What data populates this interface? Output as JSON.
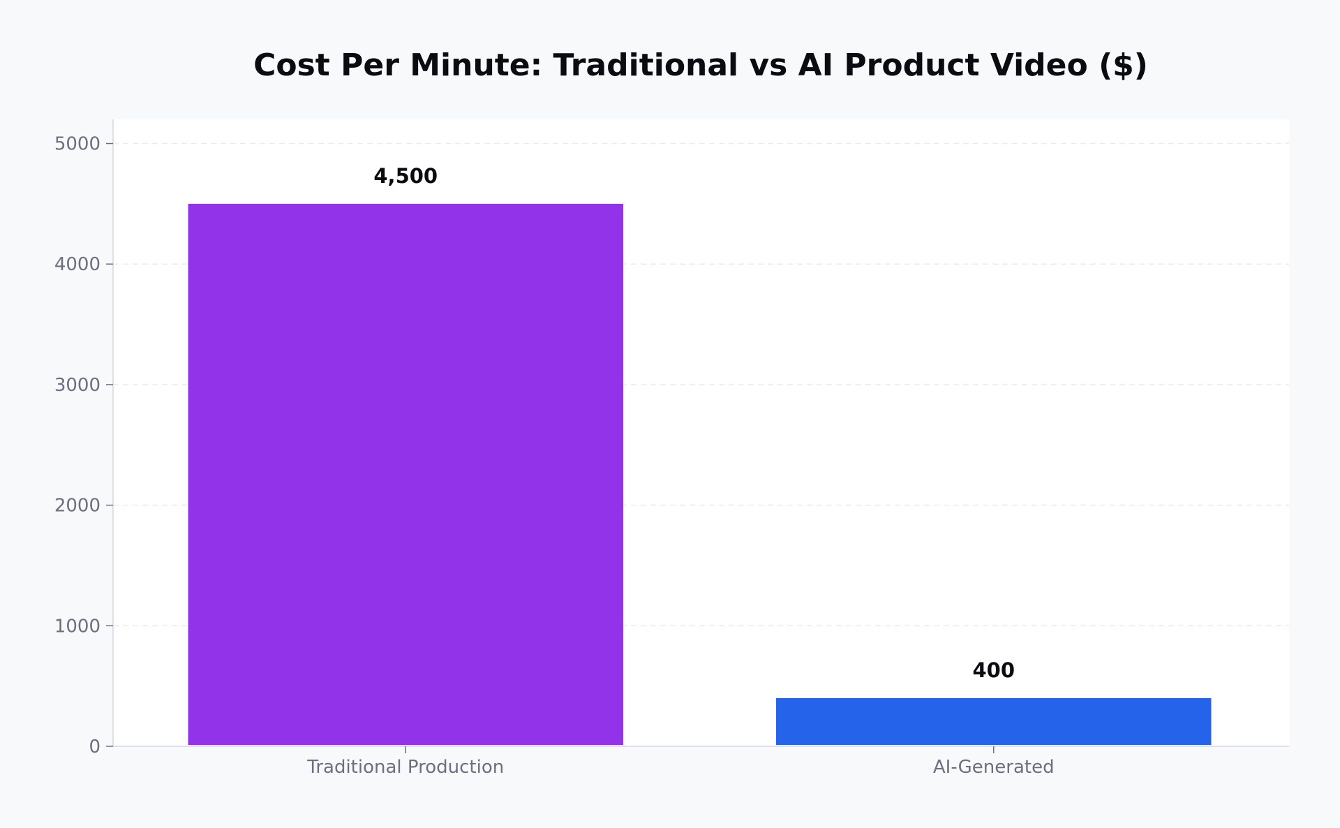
{
  "chart_data": {
    "type": "bar",
    "title": "Cost Per Minute: Traditional vs AI Product Video ($)",
    "xlabel": "",
    "ylabel": "",
    "categories": [
      "Traditional Production",
      "AI-Generated"
    ],
    "values": [
      4500,
      400
    ],
    "value_labels": [
      "4,500",
      "400"
    ],
    "colors": [
      "#9233ea",
      "#2563eb"
    ],
    "ylim": [
      0,
      5200
    ],
    "yticks": [
      0,
      1000,
      2000,
      3000,
      4000,
      5000
    ],
    "grid": true,
    "legend": "none"
  }
}
